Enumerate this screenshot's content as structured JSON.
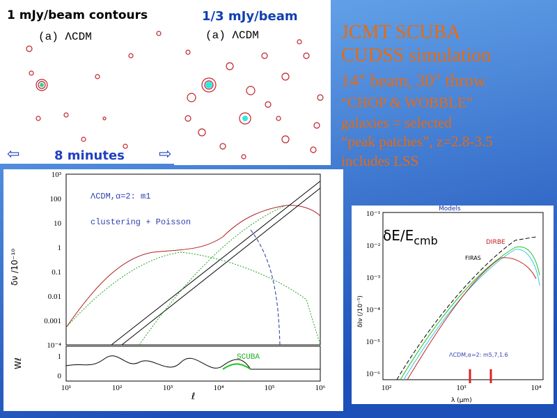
{
  "panels": [
    {
      "header": "1 mJy/beam contours",
      "label": "(a) ΛCDM",
      "footer_arrow": "⇦",
      "footer": "8 minutes"
    },
    {
      "header": "1/3  mJy/beam",
      "label": "(a) ΛCDM",
      "footer_arrow": "⇨"
    }
  ],
  "notes": [
    "JCMT SCUBA",
    "CUDSS simulation",
    "14\" beam, 30\" throw",
    "“CHOP & WOBBLE”",
    "galaxies = selected",
    "“peak patches”, z=2.8-3.5",
    "includes LSS"
  ],
  "plot_left": {
    "model": "ΛCDM,α=2: m1",
    "legend": "clustering + Poisson",
    "y_label": "δν /10⁻¹⁰",
    "y_ticks": [
      "10³",
      "100",
      "10",
      "1",
      "0.1",
      "0.01",
      "0.001",
      "10⁻⁴"
    ],
    "lower_y_label": "Wℓ",
    "lower_y_ticks": [
      "1",
      "0"
    ],
    "lower_label": "SCUBA",
    "x_ticks": [
      "10¹",
      "10²",
      "10³",
      "10⁴",
      "10⁵",
      "10⁶"
    ],
    "x_label": "ℓ"
  },
  "plot_right": {
    "title": "Models",
    "quantity": "δE/E",
    "quantity_sub": "cmb",
    "dirbe": "DIRBE",
    "firas": "FIRAS",
    "model": "ΛCDM,α=2: m5,7,1.6",
    "y_ticks": [
      "10⁻¹",
      "10⁻²",
      "10⁻³",
      "10⁻⁴",
      "10⁻⁵",
      "10⁻⁶"
    ],
    "y_label": "δIν (/10⁻⁵)",
    "x_ticks": [
      "10²",
      "10³",
      "10⁴"
    ],
    "x_label": "λ (μm)"
  }
}
